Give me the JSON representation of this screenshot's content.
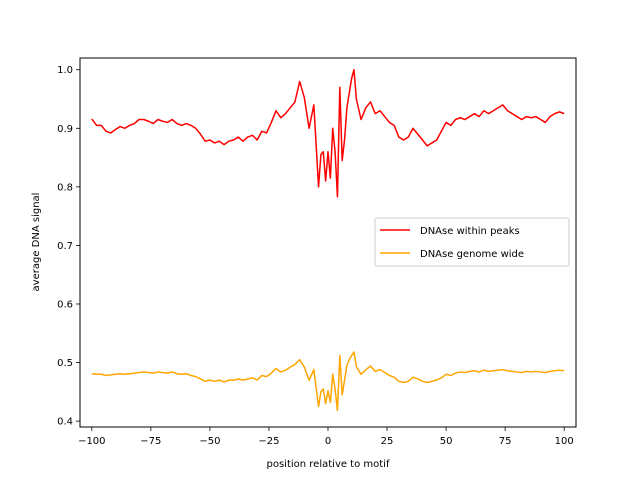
{
  "chart_data": {
    "type": "line",
    "title": "",
    "xlabel": "position relative to motif",
    "ylabel": "average DNA signal",
    "xlim": [
      -105,
      105
    ],
    "ylim": [
      0.39,
      1.02
    ],
    "xticks": [
      -100,
      -75,
      -50,
      -25,
      0,
      25,
      50,
      75,
      100
    ],
    "yticks": [
      0.4,
      0.5,
      0.6,
      0.7,
      0.8,
      0.9,
      1.0
    ],
    "ytick_labels": [
      "0.4",
      "0.5",
      "0.6",
      "0.7",
      "0.8",
      "0.9",
      "1.0"
    ],
    "grid": false,
    "legend_position": "center-right",
    "series": [
      {
        "name": "DNAse within peaks",
        "color": "#ff0000",
        "x": [
          -100,
          -98,
          -96,
          -94,
          -92,
          -90,
          -88,
          -86,
          -84,
          -82,
          -80,
          -78,
          -76,
          -74,
          -72,
          -70,
          -68,
          -66,
          -64,
          -62,
          -60,
          -58,
          -56,
          -54,
          -52,
          -50,
          -48,
          -46,
          -44,
          -42,
          -40,
          -38,
          -36,
          -34,
          -32,
          -30,
          -28,
          -26,
          -24,
          -22,
          -20,
          -18,
          -16,
          -14,
          -12,
          -10,
          -8,
          -6,
          -4,
          -3,
          -2,
          -1,
          0,
          1,
          2,
          3,
          4,
          5,
          6,
          7,
          8,
          9,
          10,
          11,
          12,
          14,
          16,
          18,
          20,
          22,
          24,
          26,
          28,
          30,
          32,
          34,
          36,
          38,
          40,
          42,
          44,
          46,
          48,
          50,
          52,
          54,
          56,
          58,
          60,
          62,
          64,
          66,
          68,
          70,
          72,
          74,
          76,
          78,
          80,
          82,
          84,
          86,
          88,
          90,
          92,
          94,
          96,
          98,
          100
        ],
        "y": [
          0.916,
          0.905,
          0.905,
          0.895,
          0.892,
          0.898,
          0.903,
          0.9,
          0.905,
          0.908,
          0.915,
          0.915,
          0.912,
          0.908,
          0.915,
          0.912,
          0.91,
          0.915,
          0.908,
          0.905,
          0.908,
          0.905,
          0.9,
          0.89,
          0.878,
          0.88,
          0.875,
          0.878,
          0.872,
          0.878,
          0.88,
          0.885,
          0.878,
          0.885,
          0.888,
          0.88,
          0.895,
          0.892,
          0.91,
          0.93,
          0.918,
          0.925,
          0.935,
          0.945,
          0.98,
          0.952,
          0.9,
          0.94,
          0.8,
          0.855,
          0.86,
          0.81,
          0.86,
          0.815,
          0.9,
          0.86,
          0.783,
          0.97,
          0.845,
          0.88,
          0.935,
          0.96,
          0.985,
          1.0,
          0.95,
          0.915,
          0.935,
          0.945,
          0.925,
          0.93,
          0.92,
          0.91,
          0.905,
          0.885,
          0.88,
          0.885,
          0.9,
          0.89,
          0.88,
          0.87,
          0.875,
          0.88,
          0.895,
          0.91,
          0.905,
          0.915,
          0.918,
          0.915,
          0.92,
          0.925,
          0.92,
          0.93,
          0.925,
          0.93,
          0.935,
          0.94,
          0.93,
          0.925,
          0.92,
          0.915,
          0.92,
          0.918,
          0.92,
          0.915,
          0.91,
          0.92,
          0.925,
          0.928,
          0.925
        ]
      },
      {
        "name": "DNAse genome wide",
        "color": "#ffa500",
        "x": [
          -100,
          -98,
          -96,
          -94,
          -92,
          -90,
          -88,
          -86,
          -84,
          -82,
          -80,
          -78,
          -76,
          -74,
          -72,
          -70,
          -68,
          -66,
          -64,
          -62,
          -60,
          -58,
          -56,
          -54,
          -52,
          -50,
          -48,
          -46,
          -44,
          -42,
          -40,
          -38,
          -36,
          -34,
          -32,
          -30,
          -28,
          -26,
          -24,
          -22,
          -20,
          -18,
          -16,
          -14,
          -12,
          -10,
          -8,
          -6,
          -4,
          -3,
          -2,
          -1,
          0,
          1,
          2,
          3,
          4,
          5,
          6,
          7,
          8,
          9,
          10,
          11,
          12,
          14,
          16,
          18,
          20,
          22,
          24,
          26,
          28,
          30,
          32,
          34,
          36,
          38,
          40,
          42,
          44,
          46,
          48,
          50,
          52,
          54,
          56,
          58,
          60,
          62,
          64,
          66,
          68,
          70,
          72,
          74,
          76,
          78,
          80,
          82,
          84,
          86,
          88,
          90,
          92,
          94,
          96,
          98,
          100
        ],
        "y": [
          0.481,
          0.48,
          0.48,
          0.478,
          0.479,
          0.48,
          0.481,
          0.48,
          0.481,
          0.482,
          0.483,
          0.484,
          0.483,
          0.482,
          0.484,
          0.483,
          0.482,
          0.484,
          0.481,
          0.48,
          0.481,
          0.478,
          0.476,
          0.472,
          0.468,
          0.47,
          0.468,
          0.47,
          0.467,
          0.47,
          0.47,
          0.472,
          0.47,
          0.472,
          0.474,
          0.47,
          0.478,
          0.476,
          0.482,
          0.49,
          0.484,
          0.487,
          0.492,
          0.497,
          0.505,
          0.492,
          0.47,
          0.488,
          0.425,
          0.45,
          0.455,
          0.43,
          0.452,
          0.432,
          0.48,
          0.455,
          0.418,
          0.512,
          0.445,
          0.47,
          0.495,
          0.505,
          0.512,
          0.518,
          0.493,
          0.48,
          0.488,
          0.494,
          0.485,
          0.488,
          0.483,
          0.478,
          0.475,
          0.468,
          0.466,
          0.468,
          0.475,
          0.472,
          0.468,
          0.466,
          0.468,
          0.47,
          0.474,
          0.48,
          0.478,
          0.482,
          0.484,
          0.483,
          0.485,
          0.486,
          0.484,
          0.487,
          0.485,
          0.486,
          0.487,
          0.488,
          0.486,
          0.485,
          0.484,
          0.483,
          0.485,
          0.484,
          0.485,
          0.484,
          0.483,
          0.485,
          0.486,
          0.487,
          0.486
        ]
      }
    ]
  }
}
